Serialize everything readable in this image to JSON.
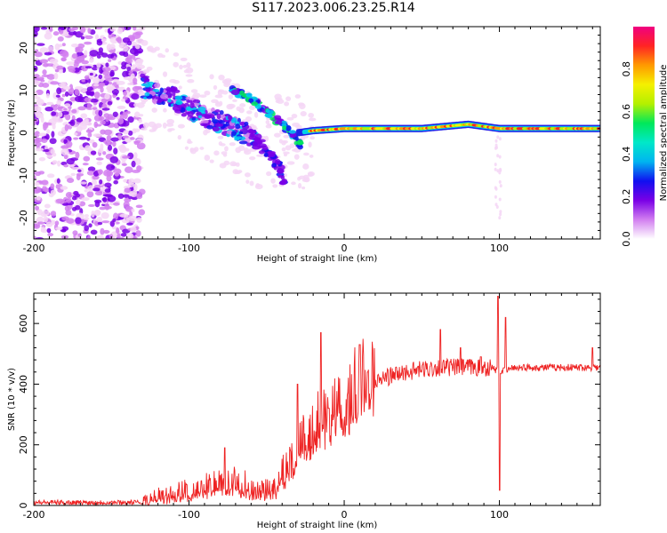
{
  "title": "S117.2023.006.23.25.R14",
  "colors": {
    "snr_line": "#ee2222",
    "axis": "#000000",
    "colormap": [
      "#f0f0f0",
      "#f4d6f6",
      "#d27ff0",
      "#7a00e6",
      "#1010f0",
      "#00c8f0",
      "#00e85a",
      "#b4f000",
      "#f5f000",
      "#ff9a00",
      "#ff2424",
      "#f00080"
    ]
  },
  "chart_data": [
    {
      "type": "heatmap",
      "name": "spectrogram",
      "xlabel": "Height of straight line (km)",
      "ylabel": "Frequency (Hz)",
      "xlim": [
        -200,
        165
      ],
      "ylim": [
        -25,
        25
      ],
      "xticks": [
        -200,
        -100,
        0,
        100
      ],
      "yticks": [
        -20,
        -10,
        0,
        10,
        20
      ],
      "colorbar": {
        "label": "Normalized spectral amplitude",
        "range": [
          0,
          1
        ],
        "ticks": [
          "0.0",
          "0.2",
          "0.4",
          "0.6",
          "0.8"
        ]
      },
      "features": {
        "noise_band": {
          "x": [
            -200,
            -130
          ],
          "y": [
            -25,
            25
          ],
          "amplitude": 0.2
        },
        "upper_branch": [
          [
            -130,
            11
          ],
          [
            -110,
            8
          ],
          [
            -90,
            4
          ],
          [
            -70,
            1
          ],
          [
            -55,
            -2
          ]
        ],
        "doppler_trace": [
          [
            -72,
            10
          ],
          [
            -60,
            8
          ],
          [
            -50,
            5
          ],
          [
            -40,
            2
          ],
          [
            -32,
            -1
          ],
          [
            -28,
            -3
          ]
        ],
        "lower_branch": [
          [
            -60,
            -1
          ],
          [
            -50,
            -4
          ],
          [
            -42,
            -8
          ],
          [
            -38,
            -12
          ]
        ],
        "carrier": [
          [
            -30,
            0
          ],
          [
            -20,
            0.5
          ],
          [
            0,
            1
          ],
          [
            20,
            1
          ],
          [
            50,
            1
          ],
          [
            80,
            2
          ],
          [
            100,
            1
          ],
          [
            165,
            1
          ]
        ]
      }
    },
    {
      "type": "line",
      "name": "snr",
      "xlabel": "Height of straight line (km)",
      "ylabel": "SNR (10 * v/v)",
      "xlim": [
        -200,
        165
      ],
      "ylim": [
        0,
        700
      ],
      "xticks": [
        -200,
        -100,
        0,
        100
      ],
      "yticks": [
        0,
        200,
        400,
        600
      ],
      "envelope": [
        [
          -200,
          10
        ],
        [
          -130,
          10
        ],
        [
          -120,
          20
        ],
        [
          -100,
          35
        ],
        [
          -80,
          55
        ],
        [
          -70,
          65
        ],
        [
          -60,
          45
        ],
        [
          -45,
          40
        ],
        [
          -35,
          120
        ],
        [
          -25,
          200
        ],
        [
          -15,
          250
        ],
        [
          -5,
          290
        ],
        [
          5,
          330
        ],
        [
          15,
          380
        ],
        [
          25,
          420
        ],
        [
          40,
          440
        ],
        [
          60,
          455
        ],
        [
          80,
          455
        ],
        [
          95,
          455
        ],
        [
          100,
          440
        ],
        [
          110,
          455
        ],
        [
          165,
          455
        ]
      ],
      "spikes": [
        [
          -77,
          190
        ],
        [
          -30,
          400
        ],
        [
          -15,
          570
        ],
        [
          -10,
          320
        ],
        [
          10,
          530
        ],
        [
          15,
          440
        ],
        [
          62,
          580
        ],
        [
          75,
          520
        ],
        [
          88,
          490
        ],
        [
          99,
          690
        ],
        [
          100,
          50
        ],
        [
          104,
          620
        ],
        [
          160,
          520
        ]
      ]
    }
  ]
}
